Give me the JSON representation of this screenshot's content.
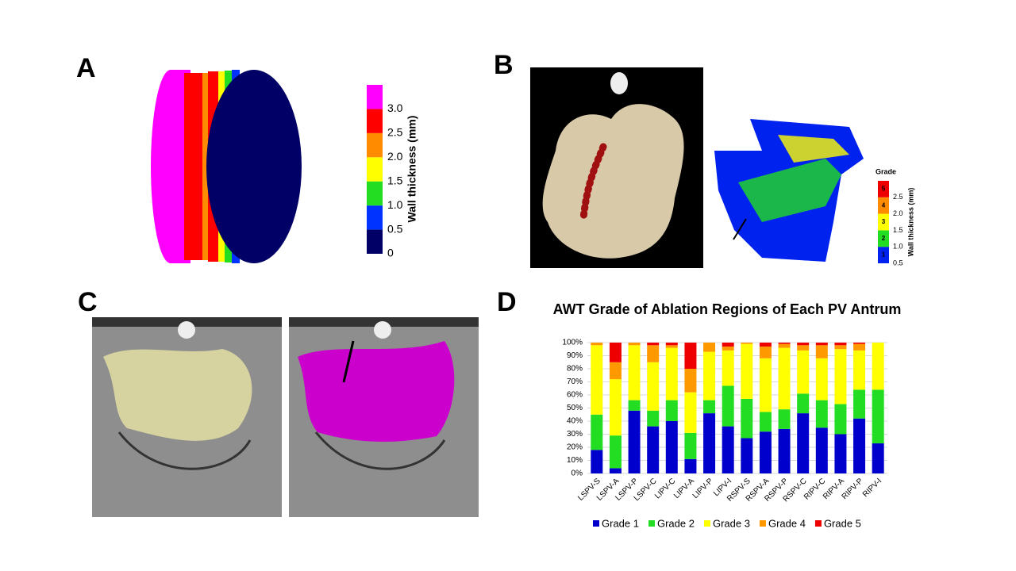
{
  "panel_labels": [
    "A",
    "B",
    "C",
    "D"
  ],
  "colorbar_a": {
    "label": "Wall thickness (mm)",
    "ticks": [
      "0",
      "0.5",
      "1.0",
      "1.5",
      "2.0",
      "2.5",
      "3.0"
    ],
    "colors": [
      "#000066",
      "#0033ff",
      "#22dd22",
      "#ffff00",
      "#ff8c00",
      "#ff0000",
      "#ff00ff"
    ]
  },
  "colorbar_b": {
    "title": "Grade",
    "grades": [
      "1",
      "2",
      "3",
      "4",
      "5"
    ],
    "ticks": [
      "0.5",
      "1.0",
      "1.5",
      "2.0",
      "2.5"
    ],
    "label": "Wall thickness (mm)",
    "colors": [
      "#0022ee",
      "#22dd22",
      "#ffff00",
      "#ff8c00",
      "#ee0000"
    ]
  },
  "chart_data": {
    "type": "stacked_bar",
    "title": "AWT Grade of Ablation Regions of Each PV Antrum",
    "categories": [
      "LSPV-S",
      "LSPV-A",
      "LSPV-P",
      "LSPV-C",
      "LIPV-C",
      "LIPV-A",
      "LIPV-P",
      "LIPV-I",
      "RSPV-S",
      "RSPV-A",
      "RSPV-P",
      "RSPV-C",
      "RIPV-C",
      "RIPV-A",
      "RIPV-P",
      "RIPV-I"
    ],
    "series": [
      {
        "name": "Grade 1",
        "color": "#0000cc",
        "values": [
          18,
          4,
          48,
          36,
          40,
          11,
          46,
          36,
          27,
          32,
          34,
          46,
          35,
          30,
          42,
          23
        ]
      },
      {
        "name": "Grade 2",
        "color": "#22dd22",
        "values": [
          27,
          25,
          8,
          12,
          16,
          20,
          10,
          31,
          30,
          15,
          15,
          15,
          21,
          23,
          22,
          41
        ]
      },
      {
        "name": "Grade 3",
        "color": "#ffff00",
        "values": [
          53,
          43,
          42,
          37,
          40,
          31,
          37,
          27,
          42,
          41,
          47,
          33,
          32,
          42,
          30,
          36
        ]
      },
      {
        "name": "Grade 4",
        "color": "#ff9900",
        "values": [
          2,
          13,
          2,
          13,
          2,
          18,
          7,
          3,
          1,
          9,
          3,
          4,
          10,
          3,
          5,
          0
        ]
      },
      {
        "name": "Grade 5",
        "color": "#ee0000",
        "values": [
          0,
          15,
          0,
          2,
          2,
          20,
          0,
          3,
          0,
          3,
          1,
          2,
          2,
          2,
          1,
          0
        ]
      }
    ],
    "ylim": [
      0,
      100
    ],
    "yticks": [
      {
        "value": 0,
        "label": "0%"
      },
      {
        "value": 10,
        "label": "10%"
      },
      {
        "value": 20,
        "label": "20%"
      },
      {
        "value": 30,
        "label": "30%"
      },
      {
        "value": 40,
        "label": "40%"
      },
      {
        "value": 50,
        "label": "50%"
      },
      {
        "value": 60,
        "label": "60%"
      },
      {
        "value": 70,
        "label": "70%"
      },
      {
        "value": 80,
        "label": "80%"
      },
      {
        "value": 90,
        "label": "90%"
      },
      {
        "value": 100,
        "label": "100%"
      }
    ],
    "grid": true,
    "legend": "bottom"
  }
}
